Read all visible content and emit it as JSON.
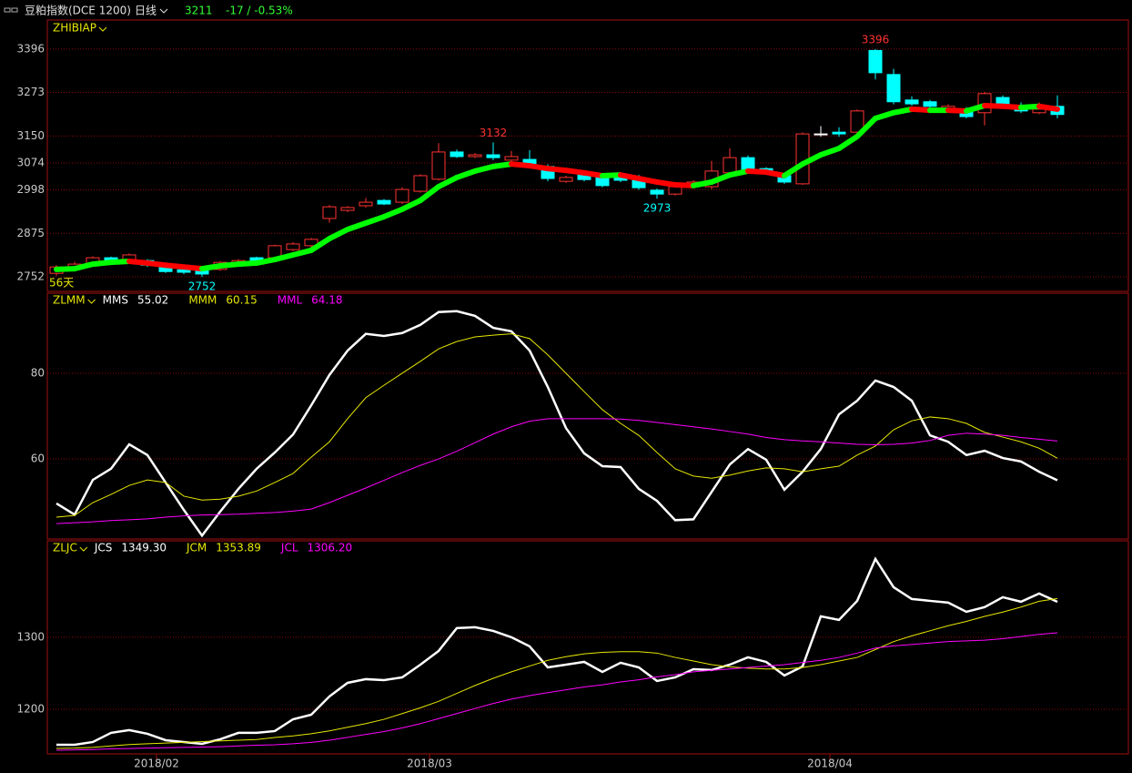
{
  "header": {
    "title": "豆粕指数(DCE 1200)",
    "period": "日线",
    "price": "3211",
    "change": "-17 / -0.53%"
  },
  "chart_data": [
    {
      "type": "candlestick",
      "title": "ZHIBIAP",
      "period_label": "56天",
      "open": [
        2762,
        2773,
        2788,
        2806,
        2801,
        2798,
        2783,
        2772,
        2770,
        2773,
        2788,
        2806,
        2806,
        2829,
        2840,
        2917,
        2940,
        2953,
        2968,
        2963,
        2994,
        3028,
        3105,
        3092,
        3097,
        3082,
        3084,
        3064,
        3022,
        3040,
        3033,
        3038,
        3030,
        2997,
        2986,
        3007,
        3007,
        3046,
        3089,
        3058,
        3038,
        3015,
        3156,
        3161,
        3161,
        3392,
        3324,
        3252,
        3247,
        3226,
        3226,
        3216,
        3259,
        3234,
        3216,
        3234
      ],
      "high": [
        2785,
        2795,
        2810,
        2809,
        2818,
        2802,
        2788,
        2776,
        2774,
        2796,
        2802,
        2809,
        2843,
        2850,
        2862,
        2955,
        2952,
        2975,
        2972,
        3005,
        3042,
        3130,
        3112,
        3102,
        3132,
        3108,
        3110,
        3070,
        3038,
        3045,
        3040,
        3045,
        3040,
        3002,
        3012,
        3025,
        3080,
        3115,
        3095,
        3062,
        3045,
        3160,
        3178,
        3175,
        3225,
        3396,
        3340,
        3262,
        3252,
        3240,
        3232,
        3275,
        3265,
        3245,
        3245,
        3265
      ],
      "low": [
        2755,
        2768,
        2784,
        2795,
        2798,
        2780,
        2763,
        2760,
        2752,
        2769,
        2784,
        2790,
        2802,
        2825,
        2835,
        2905,
        2935,
        2948,
        2955,
        2958,
        2990,
        3025,
        3088,
        3088,
        3082,
        3078,
        3066,
        3022,
        3018,
        3022,
        3005,
        3020,
        2998,
        2973,
        2982,
        3002,
        3000,
        3040,
        3050,
        3040,
        3015,
        3012,
        3148,
        3148,
        3156,
        3310,
        3240,
        3236,
        3228,
        3222,
        3200,
        3180,
        3228,
        3215,
        3212,
        3200
      ],
      "close": [
        2780,
        2788,
        2806,
        2798,
        2814,
        2785,
        2767,
        2765,
        2760,
        2793,
        2798,
        2793,
        2840,
        2845,
        2858,
        2950,
        2948,
        2963,
        2958,
        2999,
        3038,
        3105,
        3092,
        3097,
        3089,
        3092,
        3071,
        3030,
        3033,
        3027,
        3010,
        3025,
        3004,
        2986,
        3007,
        3020,
        3051,
        3089,
        3056,
        3046,
        3020,
        3156,
        3156,
        3156,
        3221,
        3329,
        3247,
        3241,
        3234,
        3234,
        3205,
        3270,
        3236,
        3221,
        3226,
        3211
      ],
      "up_color": "#ff3232",
      "down_color": "#00ffff",
      "flat_color": "#ffffff",
      "marked_highs": [
        24,
        45
      ],
      "marked_lows": [
        8,
        33
      ],
      "line": {
        "values": [
          2773,
          2775,
          2788,
          2793,
          2796,
          2791,
          2785,
          2780,
          2775,
          2783,
          2788,
          2791,
          2801,
          2814,
          2827,
          2860,
          2886,
          2904,
          2922,
          2943,
          2968,
          3007,
          3033,
          3051,
          3064,
          3071,
          3066,
          3058,
          3053,
          3046,
          3038,
          3040,
          3030,
          3020,
          3012,
          3010,
          3020,
          3040,
          3051,
          3048,
          3038,
          3071,
          3097,
          3115,
          3149,
          3200,
          3216,
          3226,
          3223,
          3223,
          3221,
          3236,
          3234,
          3231,
          3234,
          3226
        ],
        "up_color": "#00ff00",
        "down_color": "#ff0000"
      },
      "ylim": [
        2711,
        3478
      ],
      "yticks": [
        2752,
        2875,
        2998,
        3074,
        3150,
        3273,
        3396
      ],
      "grid": true
    },
    {
      "type": "line",
      "title": "ZLMM",
      "series": [
        {
          "name": "MMS",
          "color": "#ffffff",
          "values": [
            49.6,
            47.0,
            55.1,
            57.7,
            63.4,
            60.9,
            54.5,
            48.1,
            42.1,
            47.7,
            53.0,
            57.7,
            61.5,
            65.7,
            72.5,
            79.6,
            85.3,
            89.2,
            88.7,
            89.4,
            91.3,
            94.3,
            94.5,
            93.4,
            90.6,
            89.8,
            85.3,
            76.8,
            67.2,
            61.3,
            58.3,
            58.1,
            53.0,
            50.2,
            45.7,
            45.9,
            52.3,
            58.7,
            62.3,
            59.8,
            52.8,
            57.0,
            62.3,
            70.4,
            73.6,
            78.3,
            76.8,
            73.6,
            65.5,
            64.0,
            60.9,
            61.9,
            60.2,
            59.4,
            57.0,
            55.02
          ]
        },
        {
          "name": "MMM",
          "color": "#e6e600",
          "values": [
            46.4,
            46.8,
            49.8,
            51.7,
            53.8,
            55.1,
            54.5,
            51.3,
            50.4,
            50.6,
            51.3,
            52.5,
            54.5,
            56.6,
            60.4,
            64.0,
            69.4,
            74.3,
            77.2,
            80.0,
            82.8,
            85.7,
            87.4,
            88.5,
            88.9,
            89.2,
            88.1,
            84.3,
            80.0,
            75.7,
            71.5,
            68.3,
            65.5,
            61.5,
            57.7,
            56.0,
            55.5,
            56.2,
            57.2,
            57.9,
            57.7,
            57.0,
            57.7,
            58.3,
            60.9,
            63.0,
            66.8,
            68.9,
            69.8,
            69.4,
            68.3,
            66.2,
            65.1,
            64.0,
            62.5,
            60.15
          ]
        },
        {
          "name": "MML",
          "color": "#ff00ff",
          "values": [
            44.9,
            45.1,
            45.3,
            45.6,
            45.8,
            46.0,
            46.4,
            46.7,
            46.9,
            47.0,
            47.1,
            47.3,
            47.5,
            47.8,
            48.3,
            49.8,
            51.5,
            53.2,
            55.0,
            56.8,
            58.5,
            60.0,
            61.8,
            63.8,
            65.8,
            67.5,
            68.8,
            69.4,
            69.4,
            69.4,
            69.4,
            69.3,
            69.0,
            68.5,
            68.0,
            67.5,
            67.0,
            66.4,
            65.8,
            65.0,
            64.5,
            64.2,
            64.0,
            63.7,
            63.4,
            63.3,
            63.4,
            63.7,
            64.3,
            65.5,
            66.0,
            65.8,
            65.5,
            65.0,
            64.6,
            64.18
          ]
        }
      ],
      "ylim": [
        41.3,
        98.7
      ],
      "yticks": [
        60,
        80
      ],
      "grid": true
    },
    {
      "type": "line",
      "title": "ZLJC",
      "categories": [
        null,
        null,
        null,
        null,
        null,
        null,
        "2018/02",
        null,
        null,
        null,
        null,
        null,
        null,
        null,
        null,
        null,
        null,
        null,
        null,
        null,
        null,
        "2018/03",
        null,
        null,
        null,
        null,
        null,
        null,
        null,
        null,
        null,
        null,
        null,
        null,
        null,
        null,
        null,
        null,
        null,
        null,
        null,
        null,
        null,
        "2018/04",
        null,
        null,
        null,
        null,
        null,
        null,
        null,
        null,
        null,
        null,
        null,
        null
      ],
      "series": [
        {
          "name": "JCS",
          "color": "#ffffff",
          "values": [
            1150.7,
            1150.7,
            1154.5,
            1167.2,
            1171.0,
            1165.9,
            1157.0,
            1154.5,
            1151.9,
            1158.3,
            1167.2,
            1167.2,
            1169.7,
            1186.1,
            1192.4,
            1217.8,
            1236.7,
            1241.8,
            1240.5,
            1244.3,
            1262.0,
            1281.0,
            1312.7,
            1314.0,
            1308.9,
            1300.0,
            1287.4,
            1258.2,
            1262.0,
            1265.8,
            1251.9,
            1264.6,
            1258.2,
            1239.3,
            1244.3,
            1255.7,
            1254.5,
            1262.0,
            1272.2,
            1265.8,
            1246.9,
            1259.5,
            1329.1,
            1324.1,
            1350.6,
            1408.9,
            1369.6,
            1353.2,
            1350.6,
            1348.1,
            1335.4,
            1341.8,
            1355.7,
            1349.4,
            1360.8,
            1349.3
          ],
          "value_labels": [
            null,
            null,
            null,
            null,
            null,
            null,
            null,
            null,
            null,
            null,
            null,
            null,
            null,
            null,
            null,
            null,
            null,
            null,
            null,
            null,
            null,
            null,
            null,
            null,
            null,
            null,
            null,
            null,
            null,
            null,
            null,
            null,
            null,
            null,
            null,
            null,
            null,
            null,
            null,
            null,
            null,
            null,
            null,
            null,
            null,
            null,
            null,
            null,
            null,
            null,
            null,
            null,
            null,
            null,
            null,
            "1349.30"
          ]
        },
        {
          "name": "JCM",
          "color": "#e6e600",
          "values": [
            1145.6,
            1146,
            1147,
            1149,
            1151,
            1152,
            1153,
            1154,
            1155,
            1156,
            1157,
            1158,
            1160.8,
            1163,
            1166,
            1170,
            1175,
            1180,
            1186,
            1194,
            1202,
            1211,
            1222,
            1233,
            1243,
            1252,
            1260,
            1268,
            1273,
            1277,
            1279,
            1280,
            1280,
            1278,
            1272,
            1267,
            1262,
            1259,
            1257,
            1256,
            1256,
            1258,
            1262,
            1267,
            1272,
            1283,
            1294,
            1302,
            1309,
            1316,
            1322,
            1329,
            1335,
            1342,
            1350,
            1353.89
          ]
        },
        {
          "name": "JCL",
          "color": "#ff00ff",
          "values": [
            1143,
            1143.5,
            1144,
            1145,
            1145.5,
            1146,
            1146.5,
            1147,
            1147.5,
            1148,
            1149,
            1150,
            1150.7,
            1152,
            1154,
            1157,
            1161,
            1165,
            1169,
            1174,
            1180,
            1187,
            1194,
            1201,
            1208,
            1214,
            1219,
            1223,
            1227,
            1231,
            1234,
            1238,
            1241,
            1245,
            1248,
            1252,
            1254,
            1256,
            1258,
            1260,
            1262,
            1265,
            1268,
            1272,
            1278,
            1285,
            1288,
            1290,
            1292,
            1294,
            1295,
            1296,
            1298,
            1301,
            1304,
            1306.2
          ],
          "value_labels": [
            null,
            null,
            null,
            null,
            null,
            null,
            null,
            null,
            null,
            null,
            null,
            null,
            null,
            null,
            null,
            null,
            null,
            null,
            null,
            null,
            null,
            null,
            null,
            null,
            null,
            null,
            null,
            null,
            null,
            null,
            null,
            null,
            null,
            null,
            null,
            null,
            null,
            null,
            null,
            null,
            null,
            null,
            null,
            null,
            null,
            null,
            null,
            null,
            null,
            null,
            null,
            null,
            null,
            null,
            null,
            "1306.20"
          ]
        }
      ],
      "ylim": [
        1138,
        1434
      ],
      "yticks": [
        1200,
        1300
      ],
      "grid": true
    }
  ]
}
